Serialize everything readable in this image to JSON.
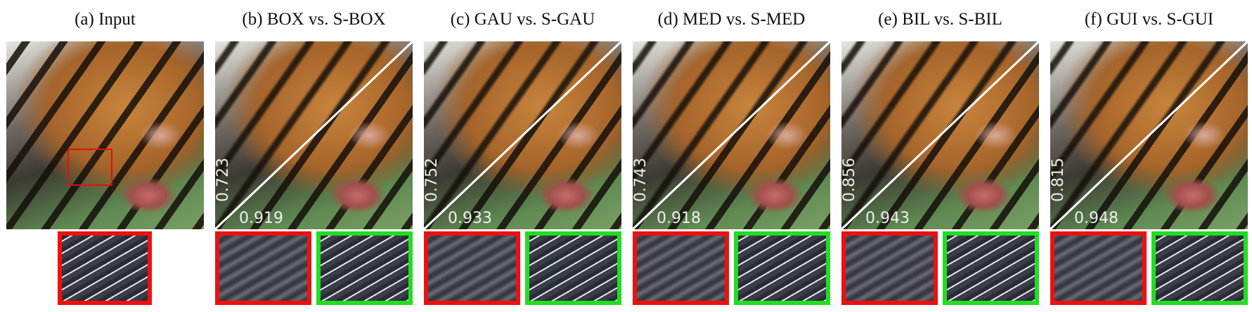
{
  "panels": [
    {
      "title": "(a) Input"
    },
    {
      "title": "(b) BOX vs. S-BOX",
      "left_score": 0.723,
      "right_score": 0.919
    },
    {
      "title": "(c) GAU vs. S-GAU",
      "left_score": 0.752,
      "right_score": 0.933
    },
    {
      "title": "(d) MED vs. S-MED",
      "left_score": 0.743,
      "right_score": 0.918
    },
    {
      "title": "(e) BIL vs. S-BIL",
      "left_score": 0.856,
      "right_score": 0.943
    },
    {
      "title": "(f) GUI vs. S-GUI",
      "left_score": 0.815,
      "right_score": 0.948
    }
  ]
}
